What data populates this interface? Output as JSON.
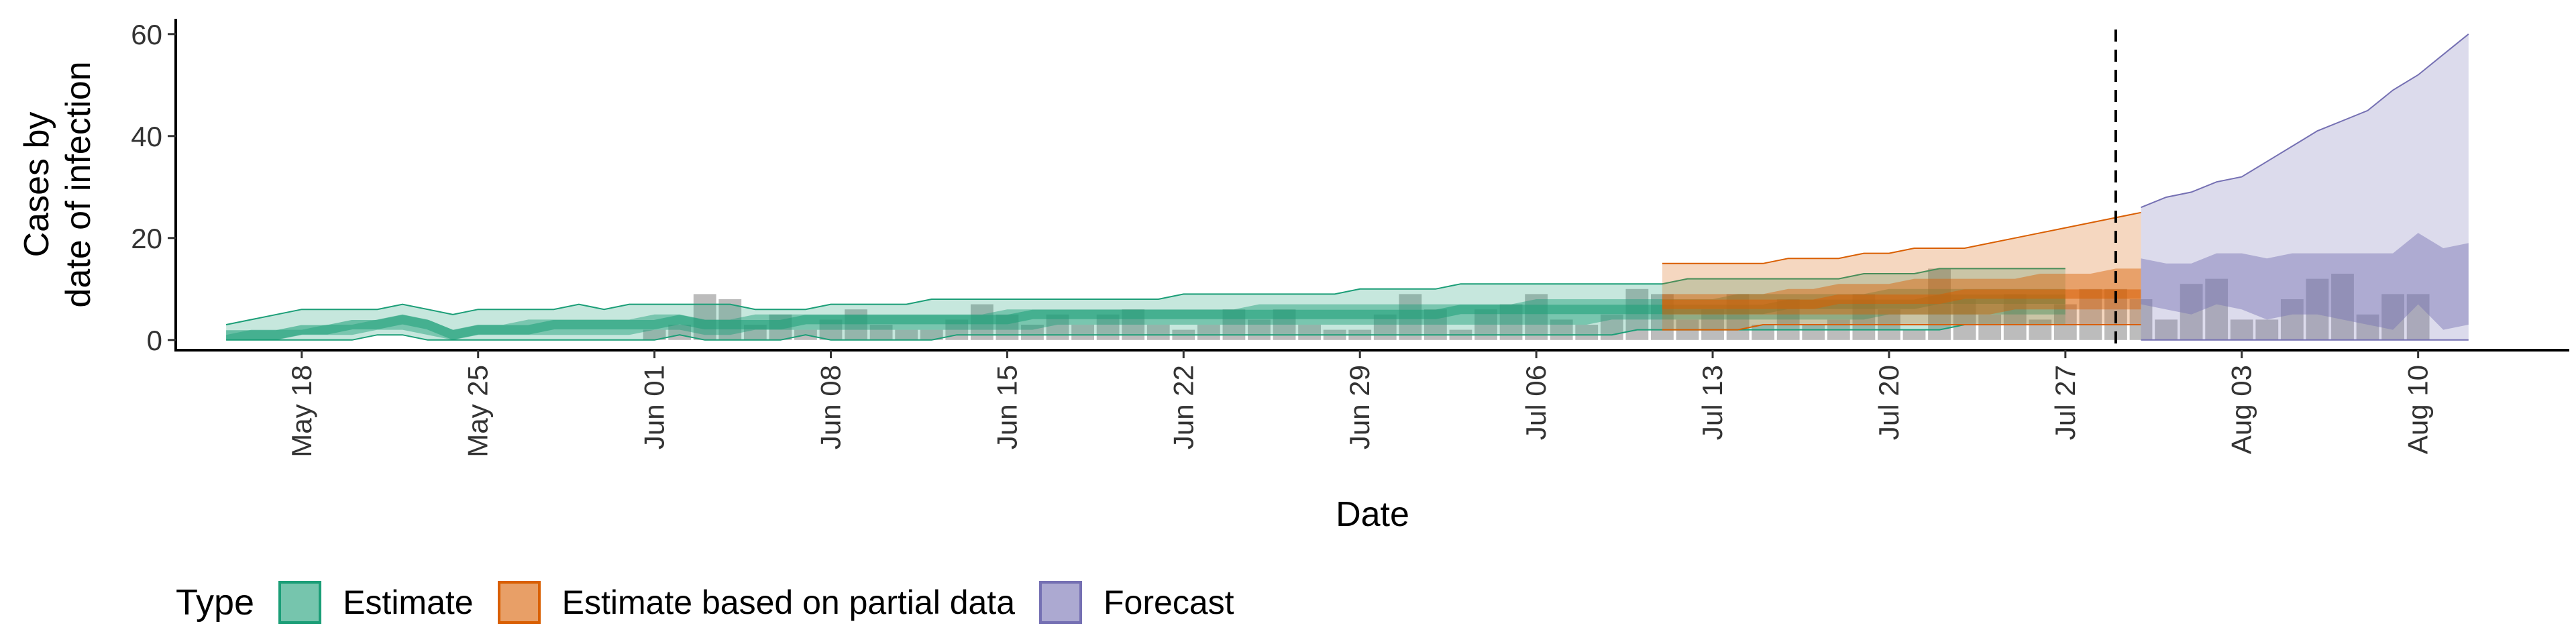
{
  "chart_data": {
    "type": "area",
    "xlabel": "Date",
    "ylabel_lines": [
      "Cases by",
      "date of infection"
    ],
    "ylim": [
      -2,
      63
    ],
    "yticks": [
      0,
      20,
      40,
      60
    ],
    "xlim": [
      "2020-05-13",
      "2020-08-16"
    ],
    "xticks": [
      {
        "date": "2020-05-18",
        "label": "May 18"
      },
      {
        "date": "2020-05-25",
        "label": "May 25"
      },
      {
        "date": "2020-06-01",
        "label": "Jun 01"
      },
      {
        "date": "2020-06-08",
        "label": "Jun 08"
      },
      {
        "date": "2020-06-15",
        "label": "Jun 15"
      },
      {
        "date": "2020-06-22",
        "label": "Jun 22"
      },
      {
        "date": "2020-06-29",
        "label": "Jun 29"
      },
      {
        "date": "2020-07-06",
        "label": "Jul 06"
      },
      {
        "date": "2020-07-13",
        "label": "Jul 13"
      },
      {
        "date": "2020-07-20",
        "label": "Jul 20"
      },
      {
        "date": "2020-07-27",
        "label": "Jul 27"
      },
      {
        "date": "2020-08-03",
        "label": "Aug 03"
      },
      {
        "date": "2020-08-10",
        "label": "Aug 10"
      }
    ],
    "forecast_divider_date": "2020-07-29",
    "observed_cases": {
      "start_date": "2020-06-01",
      "values": [
        2,
        3,
        9,
        8,
        3,
        5,
        2,
        4,
        6,
        3,
        2,
        2,
        4,
        7,
        5,
        3,
        5,
        3,
        5,
        6,
        3,
        2,
        3,
        6,
        4,
        6,
        3,
        2,
        2,
        5,
        9,
        6,
        2,
        6,
        7,
        9,
        4,
        3,
        5,
        10,
        9,
        4,
        6,
        9,
        3,
        8,
        3,
        4,
        9,
        6,
        2,
        14,
        8,
        5,
        9,
        4,
        7,
        10,
        10,
        8,
        4,
        11,
        12,
        4,
        4,
        8,
        12,
        13,
        5,
        9,
        9
      ]
    },
    "series": [
      {
        "name": "Estimate",
        "color": "#1b9e77",
        "start_date": "2020-05-15",
        "upper90": [
          3,
          4,
          5,
          6,
          6,
          6,
          6,
          7,
          6,
          5,
          6,
          6,
          6,
          6,
          7,
          6,
          7,
          7,
          7,
          7,
          7,
          6,
          6,
          6,
          7,
          7,
          7,
          7,
          8,
          8,
          8,
          8,
          8,
          8,
          8,
          8,
          8,
          8,
          9,
          9,
          9,
          9,
          9,
          9,
          9,
          10,
          10,
          10,
          10,
          11,
          11,
          11,
          11,
          11,
          11,
          11,
          11,
          11,
          12,
          12,
          12,
          12,
          12,
          12,
          12,
          13,
          13,
          13,
          14,
          14,
          14,
          14,
          14,
          14
        ],
        "upper50": [
          1,
          2,
          2,
          2,
          3,
          3,
          4,
          5,
          4,
          2,
          3,
          3,
          4,
          4,
          4,
          4,
          4,
          5,
          5,
          4,
          4,
          5,
          5,
          5,
          5,
          5,
          5,
          5,
          5,
          5,
          5,
          6,
          6,
          6,
          6,
          6,
          6,
          6,
          6,
          6,
          6,
          7,
          7,
          7,
          7,
          7,
          7,
          7,
          7,
          7,
          7,
          7,
          8,
          8,
          8,
          8,
          8,
          8,
          8,
          8,
          9,
          9,
          9,
          9,
          9,
          9,
          10,
          10,
          10,
          10,
          10,
          10,
          10,
          10
        ],
        "median": [
          1,
          1,
          1,
          2,
          2,
          3,
          3,
          4,
          3,
          1,
          2,
          2,
          2,
          3,
          3,
          3,
          3,
          3,
          4,
          3,
          3,
          3,
          3,
          4,
          4,
          4,
          4,
          4,
          4,
          4,
          4,
          4,
          5,
          5,
          5,
          5,
          5,
          5,
          5,
          5,
          5,
          5,
          5,
          5,
          5,
          5,
          5,
          5,
          5,
          6,
          6,
          6,
          6,
          6,
          6,
          6,
          6,
          6,
          6,
          6,
          6,
          6,
          7,
          7,
          7,
          7,
          7,
          7,
          8,
          8,
          8,
          8,
          8,
          8
        ],
        "lower50": [
          0,
          0,
          0,
          1,
          1,
          1,
          2,
          2,
          1,
          0,
          1,
          1,
          1,
          1,
          1,
          1,
          1,
          2,
          2,
          1,
          1,
          2,
          2,
          2,
          2,
          2,
          2,
          2,
          2,
          2,
          2,
          2,
          2,
          3,
          3,
          3,
          3,
          3,
          3,
          3,
          3,
          3,
          3,
          3,
          3,
          3,
          3,
          3,
          3,
          3,
          3,
          3,
          3,
          3,
          3,
          4,
          4,
          4,
          4,
          4,
          4,
          4,
          4,
          4,
          4,
          4,
          5,
          5,
          5,
          5,
          5,
          5,
          5,
          5
        ],
        "lower90": [
          0,
          0,
          0,
          0,
          0,
          0,
          1,
          1,
          0,
          0,
          0,
          0,
          0,
          0,
          0,
          0,
          0,
          0,
          1,
          0,
          0,
          0,
          0,
          1,
          0,
          0,
          0,
          0,
          0,
          1,
          1,
          1,
          1,
          1,
          1,
          1,
          1,
          1,
          1,
          1,
          1,
          1,
          1,
          1,
          1,
          1,
          1,
          1,
          1,
          1,
          1,
          1,
          1,
          1,
          1,
          1,
          2,
          2,
          2,
          2,
          2,
          2,
          2,
          2,
          2,
          2,
          2,
          2,
          2,
          3,
          3,
          3,
          3,
          3
        ]
      },
      {
        "name": "Estimate based on partial data",
        "color": "#d95f02",
        "start_date": "2020-07-11",
        "upper90": [
          15,
          15,
          15,
          15,
          15,
          16,
          16,
          16,
          17,
          17,
          18,
          18,
          18,
          19,
          20,
          21,
          22,
          23,
          24,
          25
        ],
        "upper50": [
          9,
          9,
          9,
          9,
          9,
          10,
          10,
          11,
          11,
          11,
          12,
          12,
          12,
          12,
          12,
          13,
          13,
          13,
          14,
          14
        ],
        "median": [
          7,
          7,
          7,
          7,
          7,
          7,
          7,
          8,
          8,
          8,
          8,
          8,
          9,
          9,
          9,
          9,
          9,
          9,
          9,
          9
        ],
        "lower50": [
          5,
          5,
          5,
          5,
          5,
          5,
          5,
          5,
          5,
          5,
          5,
          5,
          5,
          5,
          6,
          6,
          6,
          6,
          6,
          6
        ],
        "lower90": [
          2,
          2,
          2,
          2,
          3,
          3,
          3,
          3,
          3,
          3,
          3,
          3,
          3,
          3,
          3,
          3,
          3,
          3,
          3,
          3
        ]
      },
      {
        "name": "Forecast",
        "color": "#7570b3",
        "start_date": "2020-07-30",
        "upper90": [
          26,
          28,
          29,
          31,
          32,
          35,
          38,
          41,
          43,
          45,
          49,
          52,
          56,
          60
        ],
        "upper50": [
          16,
          15,
          15,
          17,
          17,
          16,
          17,
          17,
          17,
          17,
          17,
          21,
          18,
          19
        ],
        "lower50": [
          7,
          6,
          5,
          7,
          6,
          4,
          5,
          5,
          4,
          3,
          2,
          7,
          2,
          3
        ],
        "lower90": [
          0,
          0,
          0,
          0,
          0,
          0,
          0,
          0,
          0,
          0,
          0,
          0,
          0,
          0
        ]
      }
    ],
    "legend": {
      "title": "Type",
      "placement": "bottom",
      "items": [
        "Estimate",
        "Estimate based on partial data",
        "Forecast"
      ]
    }
  }
}
